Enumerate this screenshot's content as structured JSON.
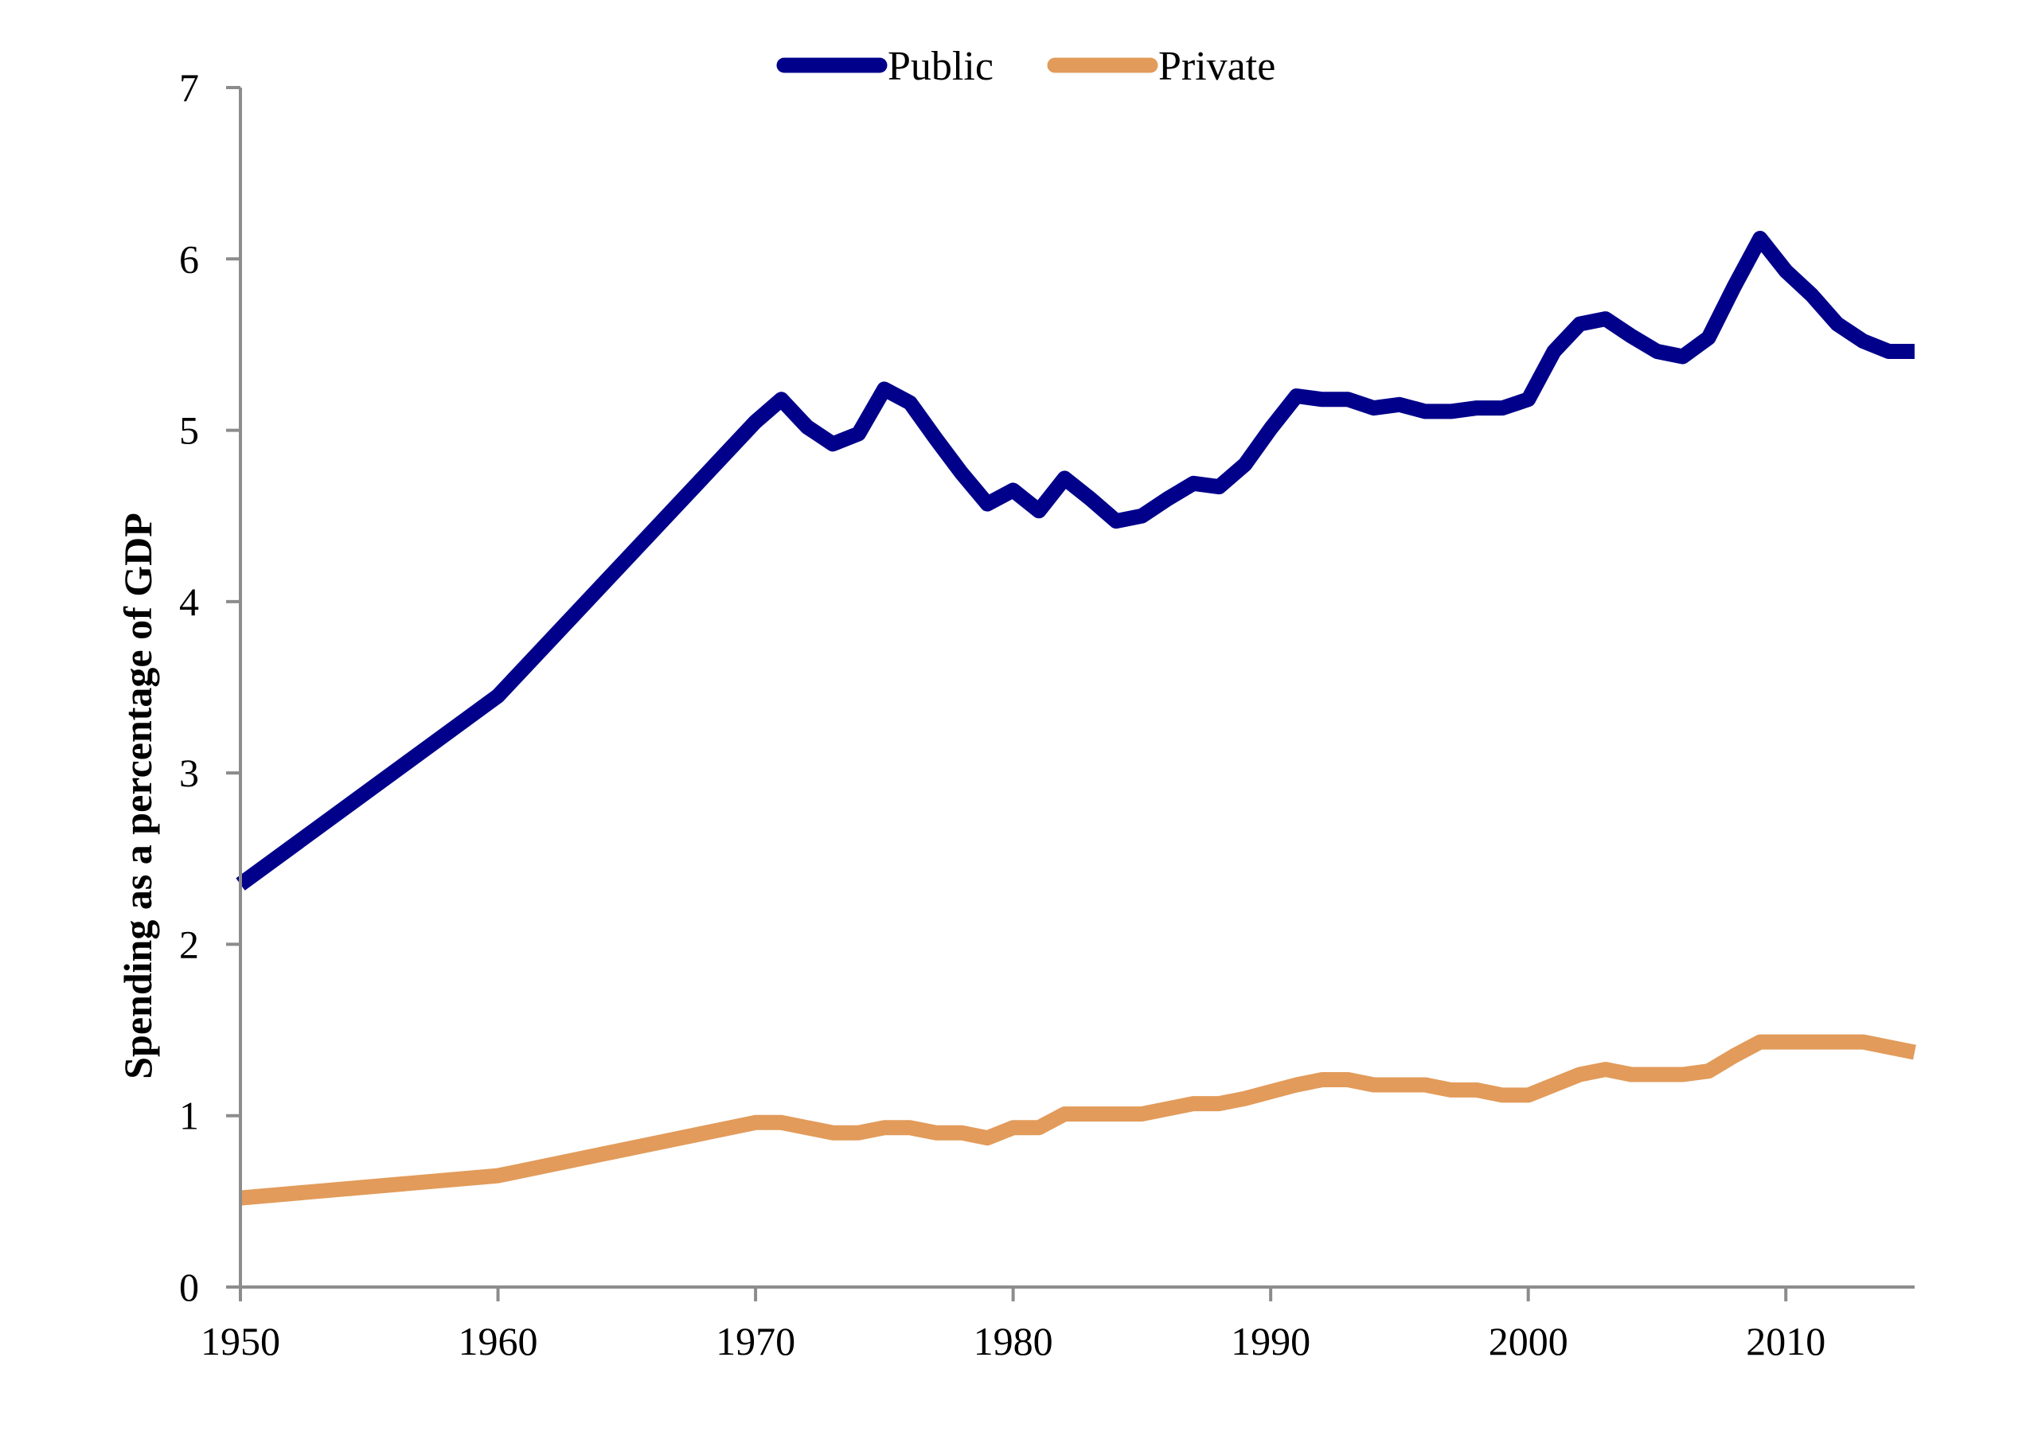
{
  "chart_data": {
    "type": "line",
    "title": "",
    "xlabel": "",
    "ylabel": "Spending as a percentage of GDP",
    "xlim": [
      1950,
      2015
    ],
    "ylim": [
      0,
      7
    ],
    "x_ticks": [
      1950,
      1960,
      1970,
      1980,
      1990,
      2000,
      2010
    ],
    "y_ticks": [
      0,
      1,
      2,
      3,
      4,
      5,
      6,
      7
    ],
    "grid": false,
    "legend_position": "top-center",
    "series": [
      {
        "name": "Public",
        "color": "#00008B",
        "points": [
          [
            1950,
            2.35
          ],
          [
            1960,
            3.45
          ],
          [
            1970,
            5.05
          ],
          [
            1971,
            5.18
          ],
          [
            1972,
            5.02
          ],
          [
            1973,
            4.92
          ],
          [
            1974,
            4.98
          ],
          [
            1975,
            5.24
          ],
          [
            1976,
            5.16
          ],
          [
            1977,
            4.95
          ],
          [
            1978,
            4.75
          ],
          [
            1979,
            4.57
          ],
          [
            1980,
            4.65
          ],
          [
            1981,
            4.53
          ],
          [
            1982,
            4.72
          ],
          [
            1983,
            4.6
          ],
          [
            1984,
            4.47
          ],
          [
            1985,
            4.5
          ],
          [
            1986,
            4.6
          ],
          [
            1987,
            4.69
          ],
          [
            1988,
            4.67
          ],
          [
            1989,
            4.8
          ],
          [
            1990,
            5.01
          ],
          [
            1991,
            5.2
          ],
          [
            1992,
            5.18
          ],
          [
            1993,
            5.18
          ],
          [
            1994,
            5.13
          ],
          [
            1995,
            5.15
          ],
          [
            1996,
            5.11
          ],
          [
            1997,
            5.11
          ],
          [
            1998,
            5.13
          ],
          [
            1999,
            5.13
          ],
          [
            2000,
            5.18
          ],
          [
            2001,
            5.46
          ],
          [
            2002,
            5.62
          ],
          [
            2003,
            5.65
          ],
          [
            2004,
            5.55
          ],
          [
            2005,
            5.46
          ],
          [
            2006,
            5.43
          ],
          [
            2007,
            5.54
          ],
          [
            2008,
            5.84
          ],
          [
            2009,
            6.12
          ],
          [
            2010,
            5.93
          ],
          [
            2011,
            5.79
          ],
          [
            2012,
            5.62
          ],
          [
            2013,
            5.52
          ],
          [
            2014,
            5.46
          ],
          [
            2015,
            5.46
          ]
        ]
      },
      {
        "name": "Private",
        "color": "#E29B5A",
        "points": [
          [
            1950,
            0.52
          ],
          [
            1960,
            0.65
          ],
          [
            1970,
            0.96
          ],
          [
            1971,
            0.96
          ],
          [
            1972,
            0.93
          ],
          [
            1973,
            0.9
          ],
          [
            1974,
            0.9
          ],
          [
            1975,
            0.93
          ],
          [
            1976,
            0.93
          ],
          [
            1977,
            0.9
          ],
          [
            1978,
            0.9
          ],
          [
            1979,
            0.87
          ],
          [
            1980,
            0.93
          ],
          [
            1981,
            0.93
          ],
          [
            1982,
            1.01
          ],
          [
            1983,
            1.01
          ],
          [
            1984,
            1.01
          ],
          [
            1985,
            1.01
          ],
          [
            1986,
            1.04
          ],
          [
            1987,
            1.07
          ],
          [
            1988,
            1.07
          ],
          [
            1989,
            1.1
          ],
          [
            1990,
            1.14
          ],
          [
            1991,
            1.18
          ],
          [
            1992,
            1.21
          ],
          [
            1993,
            1.21
          ],
          [
            1994,
            1.18
          ],
          [
            1995,
            1.18
          ],
          [
            1996,
            1.18
          ],
          [
            1997,
            1.15
          ],
          [
            1998,
            1.15
          ],
          [
            1999,
            1.12
          ],
          [
            2000,
            1.12
          ],
          [
            2001,
            1.18
          ],
          [
            2002,
            1.24
          ],
          [
            2003,
            1.27
          ],
          [
            2004,
            1.24
          ],
          [
            2005,
            1.24
          ],
          [
            2006,
            1.24
          ],
          [
            2007,
            1.26
          ],
          [
            2008,
            1.35
          ],
          [
            2009,
            1.43
          ],
          [
            2010,
            1.43
          ],
          [
            2011,
            1.43
          ],
          [
            2012,
            1.43
          ],
          [
            2013,
            1.43
          ],
          [
            2014,
            1.4
          ],
          [
            2015,
            1.37
          ]
        ]
      }
    ]
  }
}
